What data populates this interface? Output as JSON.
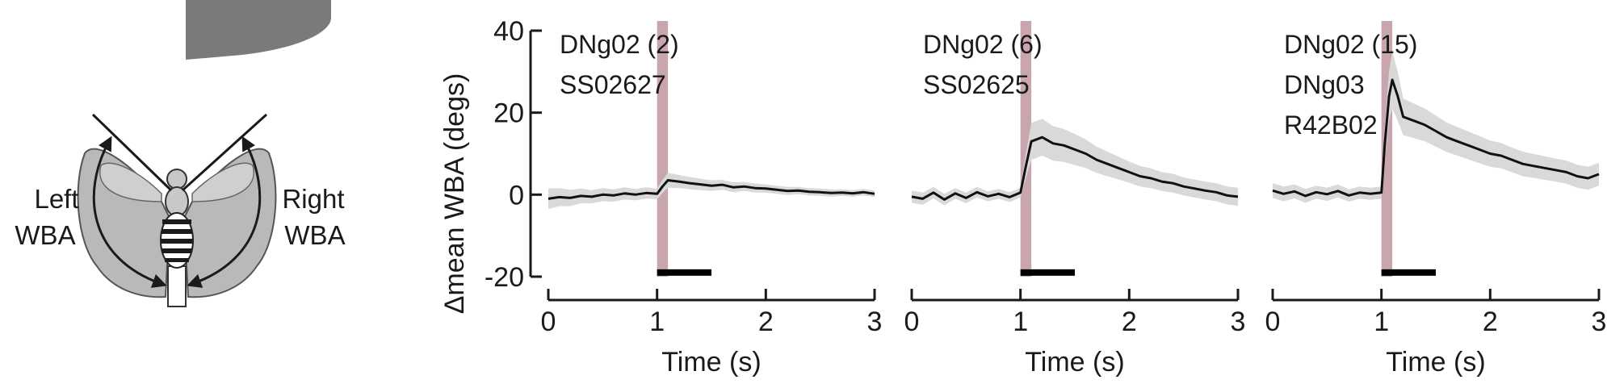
{
  "illustration": {
    "left_label": [
      "Left",
      "WBA"
    ],
    "right_label": [
      "Right",
      "WBA"
    ],
    "colors": {
      "wing": "#b9b9b9",
      "body": "#c8c8c8",
      "stripes": "#1a1a1a",
      "stimulus_arc": "#7a7a7a"
    }
  },
  "chart_data": [
    {
      "type": "line",
      "panel_label": [
        "DNg02 (2)",
        "SS02627"
      ],
      "ylabel": "Δmean WBA (degs)",
      "xlabel": "Time (s)",
      "xlim": [
        0,
        3
      ],
      "ylim": [
        -20,
        40
      ],
      "xticks": [
        0,
        1,
        2,
        3
      ],
      "yticks": [
        -20,
        0,
        20,
        40
      ],
      "stimulus": {
        "start": 1.0,
        "end": 1.1,
        "color": "#c9a6ae"
      },
      "bar": {
        "start": 1.0,
        "end": 1.5,
        "y": -19
      },
      "series": [
        {
          "color": "#111111",
          "band_color": "#d9d9d9",
          "x": [
            0,
            0.1,
            0.2,
            0.3,
            0.4,
            0.5,
            0.6,
            0.7,
            0.8,
            0.9,
            1.0,
            1.05,
            1.1,
            1.2,
            1.3,
            1.4,
            1.5,
            1.6,
            1.7,
            1.8,
            1.9,
            2.0,
            2.1,
            2.2,
            2.3,
            2.4,
            2.5,
            2.6,
            2.7,
            2.8,
            2.9,
            3.0
          ],
          "y": [
            -1,
            -0.6,
            -0.8,
            -0.3,
            -0.5,
            0,
            -0.2,
            0.3,
            0,
            0.4,
            0.2,
            2.0,
            3.5,
            3.2,
            2.8,
            2.5,
            2.2,
            2.4,
            1.8,
            2.0,
            1.6,
            1.5,
            1.2,
            0.9,
            1.0,
            0.7,
            0.6,
            0.4,
            0.5,
            0.3,
            0.6,
            0.2
          ],
          "sd": [
            2.5,
            2.2,
            2.0,
            1.8,
            1.6,
            1.6,
            1.5,
            1.5,
            1.4,
            1.4,
            1.3,
            1.6,
            1.8,
            1.6,
            1.5,
            1.4,
            1.3,
            1.2,
            1.2,
            1.1,
            1.1,
            1.0,
            1.0,
            1.0,
            0.9,
            0.9,
            0.9,
            0.9,
            0.8,
            0.8,
            0.8,
            0.8
          ]
        }
      ]
    },
    {
      "type": "line",
      "panel_label": [
        "DNg02 (6)",
        "SS02625"
      ],
      "xlabel": "Time (s)",
      "xlim": [
        0,
        3
      ],
      "ylim": [
        -20,
        40
      ],
      "xticks": [
        0,
        1,
        2,
        3
      ],
      "stimulus": {
        "start": 1.0,
        "end": 1.1,
        "color": "#c9a6ae"
      },
      "bar": {
        "start": 1.0,
        "end": 1.5,
        "y": -19
      },
      "series": [
        {
          "color": "#111111",
          "band_color": "#d9d9d9",
          "x": [
            0,
            0.1,
            0.2,
            0.3,
            0.4,
            0.5,
            0.6,
            0.7,
            0.8,
            0.9,
            1.0,
            1.05,
            1.1,
            1.2,
            1.3,
            1.4,
            1.5,
            1.6,
            1.7,
            1.8,
            1.9,
            2.0,
            2.1,
            2.2,
            2.3,
            2.4,
            2.5,
            2.6,
            2.7,
            2.8,
            2.9,
            3.0
          ],
          "y": [
            -0.5,
            -1,
            0.5,
            -1.2,
            0.3,
            -0.8,
            0.6,
            -0.4,
            0.2,
            -0.6,
            0.5,
            7,
            13,
            14,
            12.5,
            12,
            11,
            10,
            8.5,
            7.5,
            6.5,
            5.5,
            4.5,
            4.0,
            3.2,
            2.8,
            2.0,
            1.5,
            1.0,
            0.6,
            -0.2,
            -0.5
          ],
          "sd": [
            1.5,
            1.5,
            1.4,
            1.4,
            1.3,
            1.3,
            1.3,
            1.2,
            1.2,
            1.2,
            1.2,
            3.0,
            4.5,
            4.5,
            4.2,
            4.0,
            3.8,
            3.5,
            3.2,
            3.0,
            2.8,
            2.6,
            2.5,
            2.4,
            2.3,
            2.3,
            2.2,
            2.2,
            2.2,
            2.2,
            2.2,
            2.2
          ]
        }
      ]
    },
    {
      "type": "line",
      "panel_label": [
        "DNg02 (15)",
        "DNg03",
        "R42B02"
      ],
      "xlabel": "Time (s)",
      "xlim": [
        0,
        3
      ],
      "ylim": [
        -20,
        40
      ],
      "xticks": [
        0,
        1,
        2,
        3
      ],
      "stimulus": {
        "start": 1.0,
        "end": 1.1,
        "color": "#c9a6ae"
      },
      "bar": {
        "start": 1.0,
        "end": 1.5,
        "y": -19
      },
      "series": [
        {
          "color": "#111111",
          "band_color": "#d9d9d9",
          "x": [
            0,
            0.1,
            0.2,
            0.3,
            0.4,
            0.5,
            0.6,
            0.7,
            0.8,
            0.9,
            1.0,
            1.03,
            1.07,
            1.1,
            1.15,
            1.2,
            1.3,
            1.4,
            1.5,
            1.6,
            1.7,
            1.8,
            1.9,
            2.0,
            2.1,
            2.2,
            2.3,
            2.4,
            2.5,
            2.6,
            2.7,
            2.8,
            2.9,
            3.0
          ],
          "y": [
            1.0,
            0.2,
            0.8,
            -0.3,
            0.6,
            0.1,
            0.9,
            -0.2,
            0.5,
            0.2,
            0.5,
            12,
            24,
            28,
            24,
            19,
            18,
            17,
            15.5,
            14,
            13,
            12,
            11,
            10,
            9.5,
            8.5,
            7.5,
            7.0,
            6.5,
            6.0,
            5.5,
            4.5,
            4.0,
            5.0
          ],
          "sd": [
            1.8,
            1.8,
            1.7,
            1.7,
            1.6,
            1.6,
            1.6,
            1.5,
            1.5,
            1.5,
            1.5,
            4.0,
            6.0,
            7.0,
            6.0,
            4.5,
            4.2,
            4.0,
            3.8,
            3.6,
            3.5,
            3.4,
            3.3,
            3.2,
            3.1,
            3.0,
            3.0,
            2.9,
            2.9,
            2.8,
            2.8,
            2.8,
            2.8,
            2.8
          ]
        }
      ]
    }
  ]
}
